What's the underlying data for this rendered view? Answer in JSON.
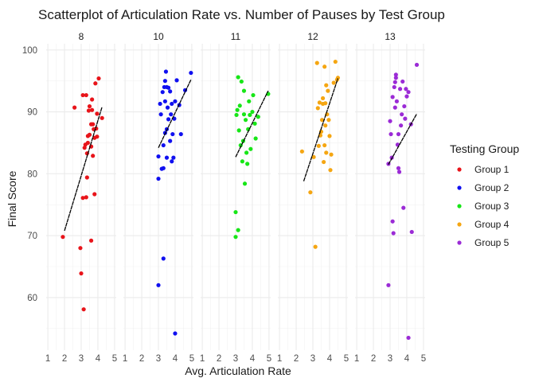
{
  "chart_data": {
    "type": "scatter",
    "title": "Scatterplot of Articulation Rate vs. Number of Pauses by Test Group",
    "xlabel": "Avg. Articulation Rate",
    "ylabel": "Final Score",
    "xlim": [
      0.9,
      5.1
    ],
    "ylim": [
      51.5,
      101
    ],
    "x_ticks": [
      1,
      2,
      3,
      4,
      5
    ],
    "y_ticks": [
      60,
      70,
      80,
      90,
      100
    ],
    "grid": true,
    "facets": [
      "8",
      "10",
      "11",
      "12",
      "13"
    ],
    "legend": {
      "title": "Testing Group",
      "placement": "right"
    },
    "series": [
      {
        "name": "Group 1",
        "facet": "8",
        "color": "#e8141a",
        "trend": [
          [
            2.0,
            70.8
          ],
          [
            4.25,
            90.8
          ]
        ],
        "points": [
          [
            1.9,
            69.8
          ],
          [
            2.6,
            90.7
          ],
          [
            2.95,
            68.0
          ],
          [
            3.0,
            63.9
          ],
          [
            3.1,
            76.1
          ],
          [
            3.1,
            92.7
          ],
          [
            3.15,
            58.1
          ],
          [
            3.2,
            84.2
          ],
          [
            3.25,
            84.7
          ],
          [
            3.3,
            76.2
          ],
          [
            3.3,
            92.7
          ],
          [
            3.35,
            79.4
          ],
          [
            3.35,
            83.3
          ],
          [
            3.4,
            86.1
          ],
          [
            3.4,
            85.0
          ],
          [
            3.45,
            90.2
          ],
          [
            3.5,
            90.9
          ],
          [
            3.5,
            86.3
          ],
          [
            3.6,
            88.0
          ],
          [
            3.6,
            84.4
          ],
          [
            3.6,
            69.2
          ],
          [
            3.65,
            92.0
          ],
          [
            3.65,
            90.3
          ],
          [
            3.7,
            88.0
          ],
          [
            3.7,
            82.9
          ],
          [
            3.75,
            87.2
          ],
          [
            3.8,
            76.7
          ],
          [
            3.8,
            85.8
          ],
          [
            3.85,
            94.6
          ],
          [
            3.9,
            87.3
          ],
          [
            3.95,
            89.7
          ],
          [
            3.95,
            86.0
          ],
          [
            4.05,
            95.4
          ],
          [
            4.25,
            89.0
          ]
        ]
      },
      {
        "name": "Group 2",
        "facet": "10",
        "color": "#1010f0",
        "trend": [
          [
            3.0,
            84.2
          ],
          [
            4.95,
            95.2
          ]
        ],
        "points": [
          [
            3.0,
            79.2
          ],
          [
            3.0,
            82.8
          ],
          [
            3.0,
            62.0
          ],
          [
            3.1,
            91.3
          ],
          [
            3.15,
            89.6
          ],
          [
            3.2,
            80.8
          ],
          [
            3.25,
            93.2
          ],
          [
            3.3,
            80.9
          ],
          [
            3.3,
            84.6
          ],
          [
            3.3,
            66.3
          ],
          [
            3.35,
            94.0
          ],
          [
            3.4,
            86.6
          ],
          [
            3.4,
            91.7
          ],
          [
            3.4,
            95.0
          ],
          [
            3.45,
            96.5
          ],
          [
            3.5,
            87.2
          ],
          [
            3.5,
            82.6
          ],
          [
            3.5,
            94.0
          ],
          [
            3.55,
            90.7
          ],
          [
            3.6,
            93.9
          ],
          [
            3.6,
            88.8
          ],
          [
            3.7,
            85.3
          ],
          [
            3.7,
            93.3
          ],
          [
            3.75,
            89.6
          ],
          [
            3.8,
            82.0
          ],
          [
            3.8,
            91.3
          ],
          [
            3.85,
            86.4
          ],
          [
            3.9,
            82.6
          ],
          [
            3.95,
            88.9
          ],
          [
            4.0,
            54.2
          ],
          [
            4.0,
            91.7
          ],
          [
            4.1,
            95.1
          ],
          [
            4.25,
            91.1
          ],
          [
            4.35,
            86.4
          ],
          [
            4.6,
            93.5
          ],
          [
            4.95,
            96.3
          ]
        ]
      },
      {
        "name": "Group 3",
        "facet": "11",
        "color": "#17e617",
        "trend": [
          [
            3.0,
            82.7
          ],
          [
            4.95,
            93.4
          ]
        ],
        "points": [
          [
            3.0,
            69.8
          ],
          [
            3.0,
            73.8
          ],
          [
            3.05,
            89.5
          ],
          [
            3.1,
            90.3
          ],
          [
            3.15,
            70.9
          ],
          [
            3.15,
            95.6
          ],
          [
            3.2,
            87.0
          ],
          [
            3.25,
            91.0
          ],
          [
            3.3,
            84.6
          ],
          [
            3.35,
            94.9
          ],
          [
            3.4,
            82.0
          ],
          [
            3.45,
            85.3
          ],
          [
            3.5,
            89.6
          ],
          [
            3.5,
            93.4
          ],
          [
            3.55,
            78.4
          ],
          [
            3.6,
            88.7
          ],
          [
            3.65,
            83.4
          ],
          [
            3.7,
            81.6
          ],
          [
            3.75,
            87.2
          ],
          [
            3.8,
            91.7
          ],
          [
            3.85,
            89.5
          ],
          [
            3.9,
            84.0
          ],
          [
            4.0,
            90.0
          ],
          [
            4.05,
            92.7
          ],
          [
            4.15,
            88.1
          ],
          [
            4.2,
            85.7
          ],
          [
            4.35,
            89.2
          ],
          [
            4.95,
            92.9
          ]
        ]
      },
      {
        "name": "Group 4",
        "facet": "12",
        "color": "#f5a612",
        "trend": [
          [
            2.45,
            78.8
          ],
          [
            4.5,
            95.4
          ]
        ],
        "points": [
          [
            2.35,
            83.6
          ],
          [
            2.85,
            77.0
          ],
          [
            3.05,
            82.7
          ],
          [
            3.15,
            68.2
          ],
          [
            3.25,
            97.9
          ],
          [
            3.3,
            90.6
          ],
          [
            3.35,
            84.5
          ],
          [
            3.4,
            91.5
          ],
          [
            3.45,
            86.2
          ],
          [
            3.5,
            86.8
          ],
          [
            3.55,
            88.7
          ],
          [
            3.6,
            92.2
          ],
          [
            3.6,
            91.3
          ],
          [
            3.65,
            81.9
          ],
          [
            3.7,
            84.6
          ],
          [
            3.7,
            97.3
          ],
          [
            3.75,
            91.4
          ],
          [
            3.75,
            87.8
          ],
          [
            3.8,
            94.3
          ],
          [
            3.8,
            83.4
          ],
          [
            3.85,
            89.6
          ],
          [
            3.9,
            93.4
          ],
          [
            3.95,
            88.7
          ],
          [
            4.0,
            86.1
          ],
          [
            4.05,
            80.6
          ],
          [
            4.1,
            83.1
          ],
          [
            4.25,
            94.7
          ],
          [
            4.35,
            98.1
          ],
          [
            4.45,
            95.2
          ],
          [
            4.5,
            95.5
          ]
        ]
      },
      {
        "name": "Group 5",
        "facet": "13",
        "color": "#9b2bd6",
        "trend": [
          [
            2.9,
            81.5
          ],
          [
            4.6,
            89.7
          ]
        ],
        "points": [
          [
            2.9,
            62.0
          ],
          [
            2.9,
            81.6
          ],
          [
            3.0,
            88.5
          ],
          [
            3.05,
            86.4
          ],
          [
            3.1,
            82.6
          ],
          [
            3.15,
            92.4
          ],
          [
            3.15,
            72.3
          ],
          [
            3.2,
            70.4
          ],
          [
            3.25,
            94.0
          ],
          [
            3.3,
            90.7
          ],
          [
            3.3,
            94.8
          ],
          [
            3.35,
            95.5
          ],
          [
            3.35,
            96.0
          ],
          [
            3.4,
            91.7
          ],
          [
            3.45,
            84.7
          ],
          [
            3.5,
            86.4
          ],
          [
            3.5,
            80.9
          ],
          [
            3.55,
            80.3
          ],
          [
            3.6,
            93.7
          ],
          [
            3.65,
            87.8
          ],
          [
            3.7,
            89.6
          ],
          [
            3.75,
            94.9
          ],
          [
            3.8,
            74.5
          ],
          [
            3.85,
            90.9
          ],
          [
            3.9,
            88.9
          ],
          [
            3.95,
            93.7
          ],
          [
            4.0,
            92.5
          ],
          [
            4.1,
            53.5
          ],
          [
            4.1,
            93.2
          ],
          [
            4.25,
            88.0
          ],
          [
            4.3,
            70.6
          ],
          [
            4.6,
            97.6
          ]
        ]
      }
    ]
  }
}
